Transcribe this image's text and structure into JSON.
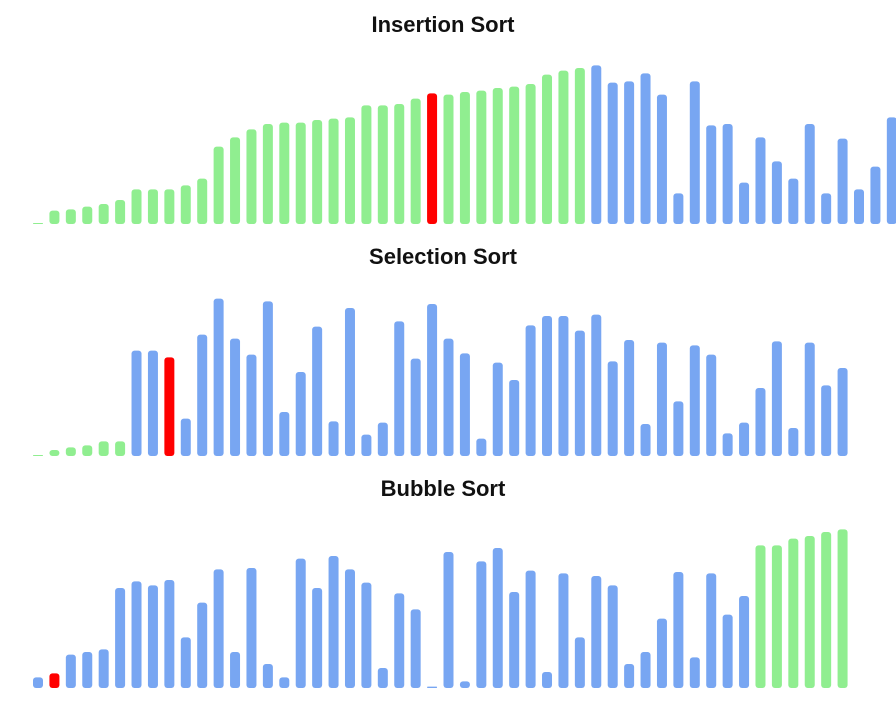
{
  "colors": {
    "sorted": "#90ee90",
    "unsorted": "#78a6f2",
    "active": "#ff0000"
  },
  "chart_data": [
    {
      "type": "bar",
      "title": "Insertion Sort",
      "values": [
        0.7,
        10,
        11,
        13,
        15,
        18,
        26,
        26,
        26,
        29,
        34,
        58,
        65,
        71,
        75,
        76,
        76,
        78,
        79,
        80,
        89,
        89,
        90,
        94,
        98,
        97,
        99,
        100,
        102,
        103,
        105,
        112,
        115,
        117,
        119,
        106,
        107,
        113,
        97,
        23,
        107,
        74,
        75,
        31,
        65,
        47,
        34,
        75,
        23,
        64,
        26,
        43,
        80,
        75,
        9
      ],
      "sorted_count": 34,
      "active_index": 24
    },
    {
      "type": "bar",
      "title": "Selection Sort",
      "values": [
        0.7,
        4.5,
        6.5,
        8,
        11,
        11,
        79,
        79,
        74,
        28,
        91,
        118,
        88,
        76,
        116,
        33,
        63,
        97,
        26,
        111,
        16,
        25,
        101,
        73,
        114,
        88,
        77,
        13,
        70,
        57,
        98,
        105,
        105,
        94,
        106,
        71,
        87,
        24,
        85,
        41,
        83,
        76,
        17,
        25,
        51,
        86,
        21,
        85,
        53,
        66
      ],
      "sorted_count": 6,
      "active_index": 8
    },
    {
      "type": "bar",
      "title": "Bubble Sort",
      "values": [
        8,
        11,
        25,
        27,
        29,
        75,
        80,
        77,
        81,
        38,
        64,
        89,
        27,
        90,
        18,
        8,
        97,
        75,
        99,
        89,
        79,
        15,
        71,
        59,
        1,
        102,
        5,
        95,
        105,
        72,
        88,
        12,
        86,
        38,
        84,
        77,
        18,
        27,
        52,
        87,
        23,
        86,
        55,
        69,
        107,
        107,
        112,
        114,
        117,
        119
      ],
      "sorted_from": 44,
      "active_index": 1
    }
  ]
}
